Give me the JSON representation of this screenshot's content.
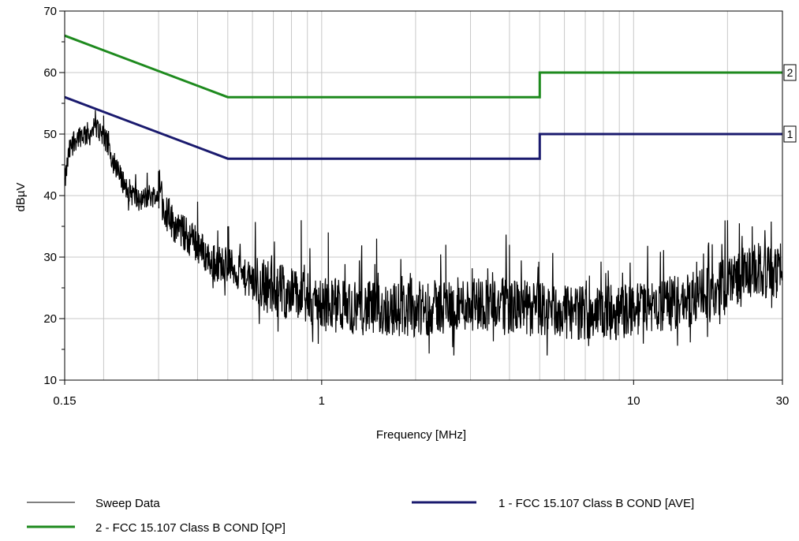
{
  "chart_data": {
    "type": "line",
    "title": "",
    "xlabel": "Frequency [MHz]",
    "ylabel": "dBµV",
    "xscale": "log",
    "xlim": [
      0.15,
      30
    ],
    "ylim": [
      10,
      70
    ],
    "x_ticks": [
      {
        "value": 0.15,
        "label": "0.15"
      },
      {
        "value": 1,
        "label": "1"
      },
      {
        "value": 10,
        "label": "10"
      },
      {
        "value": 30,
        "label": "30"
      }
    ],
    "y_ticks": [
      {
        "value": 10,
        "label": "10"
      },
      {
        "value": 20,
        "label": "20"
      },
      {
        "value": 30,
        "label": "30"
      },
      {
        "value": 40,
        "label": "40"
      },
      {
        "value": 50,
        "label": "50"
      },
      {
        "value": 60,
        "label": "60"
      },
      {
        "value": 70,
        "label": "70"
      }
    ],
    "grid": true,
    "legend_position": "bottom",
    "series": [
      {
        "name": "Sweep Data",
        "color": "#000000",
        "style": "noisy",
        "x": [
          0.15,
          0.155,
          0.16,
          0.17,
          0.18,
          0.19,
          0.2,
          0.21,
          0.22,
          0.24,
          0.26,
          0.28,
          0.3,
          0.32,
          0.34,
          0.36,
          0.38,
          0.4,
          0.43,
          0.46,
          0.5,
          0.55,
          0.6,
          0.65,
          0.7,
          0.8,
          0.9,
          1.0,
          1.2,
          1.5,
          2.0,
          2.5,
          3.0,
          3.5,
          4.0,
          5.0,
          6.0,
          7.0,
          8.0,
          9.0,
          10.0,
          12.0,
          15.0,
          18.0,
          20.0,
          22.0,
          25.0,
          28.0,
          30.0
        ],
        "values": [
          42,
          47,
          49,
          50,
          50,
          51,
          50,
          47,
          44,
          41,
          39,
          40,
          40,
          37,
          35,
          34,
          33,
          32,
          30,
          29,
          29,
          27,
          26,
          25.5,
          25,
          24,
          23,
          22.5,
          22,
          21.5,
          21.5,
          22,
          22.5,
          22.5,
          22,
          21.5,
          21,
          21,
          21,
          21,
          21.5,
          22,
          23,
          24,
          26,
          27,
          28,
          27,
          28
        ],
        "peaks": [
          {
            "x": 0.2,
            "y": 53
          },
          {
            "x": 0.3,
            "y": 44
          },
          {
            "x": 0.4,
            "y": 39
          },
          {
            "x": 0.5,
            "y": 35
          },
          {
            "x": 0.86,
            "y": 36
          },
          {
            "x": 1.05,
            "y": 34
          },
          {
            "x": 1.5,
            "y": 33
          },
          {
            "x": 2.5,
            "y": 32
          },
          {
            "x": 4.0,
            "y": 32
          },
          {
            "x": 20.0,
            "y": 36
          },
          {
            "x": 24.0,
            "y": 35
          }
        ]
      },
      {
        "name": "1 - FCC 15.107 Class B COND [AVE]",
        "marker": "1",
        "color": "#1a1a6e",
        "x": [
          0.15,
          0.5,
          0.5,
          5.0,
          5.0,
          30
        ],
        "values": [
          56,
          46,
          46,
          46,
          50,
          50
        ]
      },
      {
        "name": "2 - FCC 15.107 Class B COND [QP]",
        "marker": "2",
        "color": "#1e8a1e",
        "x": [
          0.15,
          0.5,
          0.5,
          5.0,
          5.0,
          30
        ],
        "values": [
          66,
          56,
          56,
          56,
          60,
          60
        ]
      }
    ]
  }
}
